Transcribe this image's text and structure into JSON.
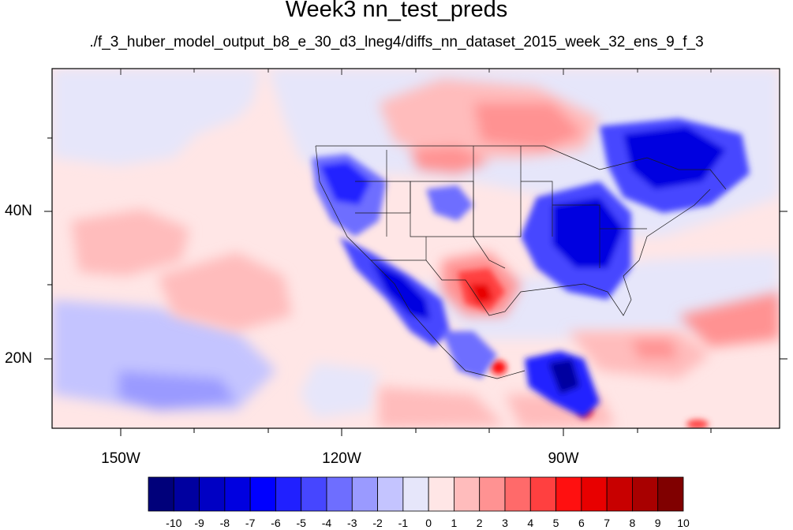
{
  "title": "Week3 nn_test_preds",
  "subtitle": "./f_3_huber_model_output_b8_e_30_d3_lneg4/diffs_nn_dataset_2015_week_32_ens_9_f_3",
  "axes": {
    "lon_ticks": [
      "150W",
      "120W",
      "90W"
    ],
    "lat_ticks": [
      "40N",
      "20N"
    ]
  },
  "colorbar": {
    "labels": [
      "-10",
      "-9",
      "-8",
      "-7",
      "-6",
      "-5",
      "-4",
      "-3",
      "-2",
      "-1",
      "0",
      "1",
      "2",
      "3",
      "4",
      "5",
      "6",
      "7",
      "8",
      "9",
      "10"
    ],
    "colors": [
      "#00007a",
      "#0000a0",
      "#0000c4",
      "#0000e0",
      "#0000ff",
      "#2020ff",
      "#4646ff",
      "#6e6eff",
      "#9a9aff",
      "#c4c4ff",
      "#e6e6fa",
      "#ffe6e6",
      "#ffbcbc",
      "#ff9292",
      "#ff6a6a",
      "#ff4040",
      "#ff1010",
      "#e80000",
      "#c80000",
      "#a80000",
      "#800000"
    ]
  }
}
